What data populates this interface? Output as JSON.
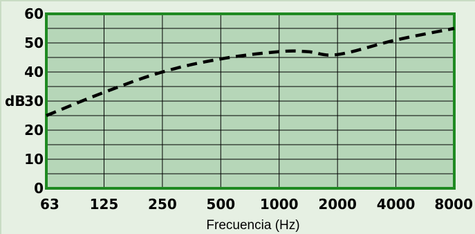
{
  "chart_data": {
    "type": "line",
    "title": "",
    "xlabel": "Frecuencia (Hz)",
    "ylabel": "dB",
    "x_scale": "log",
    "categories": [
      "63",
      "125",
      "250",
      "500",
      "1000",
      "2000",
      "4000",
      "8000"
    ],
    "yticks": [
      "0",
      "10",
      "20",
      "30",
      "40",
      "50",
      "60"
    ],
    "ylim": [
      0,
      60
    ],
    "grid": true,
    "series": [
      {
        "style": "dashed",
        "x": [
          63,
          125,
          250,
          500,
          1000,
          1400,
          2000,
          4000,
          8000
        ],
        "y": [
          25,
          33,
          40,
          44.5,
          47,
          47,
          46,
          51,
          55
        ]
      }
    ],
    "colors": {
      "plot_background": "#b6d6b8",
      "frame": "#1f8a22",
      "grid": "#000000",
      "line": "#000000",
      "page_background": "#e6f0e3"
    }
  }
}
